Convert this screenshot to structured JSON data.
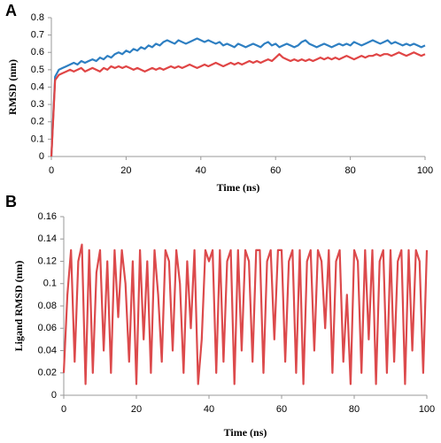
{
  "chart_data": [
    {
      "type": "line",
      "panel_label": "A",
      "x_label": "Time (ns)",
      "y_label": "RMSD (nm)",
      "x": [
        0,
        1,
        2,
        3,
        4,
        5,
        6,
        7,
        8,
        9,
        10,
        11,
        12,
        13,
        14,
        15,
        16,
        17,
        18,
        19,
        20,
        21,
        22,
        23,
        24,
        25,
        26,
        27,
        28,
        29,
        30,
        31,
        32,
        33,
        34,
        35,
        36,
        37,
        38,
        39,
        40,
        41,
        42,
        43,
        44,
        45,
        46,
        47,
        48,
        49,
        50,
        51,
        52,
        53,
        54,
        55,
        56,
        57,
        58,
        59,
        60,
        61,
        62,
        63,
        64,
        65,
        66,
        67,
        68,
        69,
        70,
        71,
        72,
        73,
        74,
        75,
        76,
        77,
        78,
        79,
        80,
        81,
        82,
        83,
        84,
        85,
        86,
        87,
        88,
        89,
        90,
        91,
        92,
        93,
        94,
        95,
        96,
        97,
        98,
        99,
        100
      ],
      "series": [
        {
          "color": "#2e7fc2",
          "values": [
            0,
            0.46,
            0.5,
            0.51,
            0.52,
            0.53,
            0.54,
            0.53,
            0.55,
            0.54,
            0.55,
            0.56,
            0.55,
            0.57,
            0.56,
            0.58,
            0.57,
            0.59,
            0.6,
            0.59,
            0.61,
            0.6,
            0.62,
            0.61,
            0.63,
            0.62,
            0.64,
            0.63,
            0.65,
            0.64,
            0.66,
            0.67,
            0.66,
            0.65,
            0.67,
            0.66,
            0.65,
            0.66,
            0.67,
            0.68,
            0.67,
            0.66,
            0.67,
            0.66,
            0.65,
            0.66,
            0.64,
            0.65,
            0.64,
            0.63,
            0.65,
            0.64,
            0.63,
            0.64,
            0.65,
            0.64,
            0.63,
            0.65,
            0.66,
            0.64,
            0.65,
            0.63,
            0.64,
            0.65,
            0.64,
            0.63,
            0.64,
            0.66,
            0.67,
            0.65,
            0.64,
            0.63,
            0.64,
            0.65,
            0.64,
            0.63,
            0.64,
            0.65,
            0.64,
            0.65,
            0.64,
            0.66,
            0.65,
            0.64,
            0.65,
            0.66,
            0.67,
            0.66,
            0.65,
            0.66,
            0.67,
            0.65,
            0.66,
            0.65,
            0.64,
            0.65,
            0.64,
            0.65,
            0.64,
            0.63,
            0.64
          ]
        },
        {
          "color": "#e04545",
          "values": [
            0,
            0.44,
            0.47,
            0.48,
            0.49,
            0.5,
            0.49,
            0.5,
            0.51,
            0.49,
            0.5,
            0.51,
            0.5,
            0.49,
            0.51,
            0.5,
            0.52,
            0.51,
            0.52,
            0.51,
            0.52,
            0.51,
            0.5,
            0.51,
            0.5,
            0.49,
            0.5,
            0.51,
            0.5,
            0.51,
            0.5,
            0.51,
            0.52,
            0.51,
            0.52,
            0.51,
            0.52,
            0.53,
            0.52,
            0.51,
            0.52,
            0.53,
            0.52,
            0.53,
            0.54,
            0.53,
            0.52,
            0.53,
            0.54,
            0.53,
            0.54,
            0.53,
            0.54,
            0.55,
            0.54,
            0.55,
            0.54,
            0.55,
            0.56,
            0.55,
            0.57,
            0.59,
            0.57,
            0.56,
            0.55,
            0.56,
            0.55,
            0.56,
            0.55,
            0.56,
            0.55,
            0.56,
            0.57,
            0.56,
            0.57,
            0.56,
            0.57,
            0.56,
            0.57,
            0.58,
            0.57,
            0.56,
            0.57,
            0.58,
            0.57,
            0.58,
            0.58,
            0.59,
            0.58,
            0.59,
            0.59,
            0.58,
            0.59,
            0.6,
            0.59,
            0.58,
            0.59,
            0.6,
            0.59,
            0.58,
            0.59
          ]
        }
      ],
      "xlim": [
        0,
        100
      ],
      "xticks": [
        0,
        20,
        40,
        60,
        80,
        100
      ],
      "ylim": [
        0,
        0.8
      ],
      "yticks": [
        0,
        0.1,
        0.2,
        0.3,
        0.4,
        0.5,
        0.6,
        0.7,
        0.8
      ]
    },
    {
      "type": "line",
      "panel_label": "B",
      "x_label": "Time (ns)",
      "y_label": "Ligand RMSD (nm)",
      "x": [
        0,
        1,
        2,
        3,
        4,
        5,
        6,
        7,
        8,
        9,
        10,
        11,
        12,
        13,
        14,
        15,
        16,
        17,
        18,
        19,
        20,
        21,
        22,
        23,
        24,
        25,
        26,
        27,
        28,
        29,
        30,
        31,
        32,
        33,
        34,
        35,
        36,
        37,
        38,
        39,
        40,
        41,
        42,
        43,
        44,
        45,
        46,
        47,
        48,
        49,
        50,
        51,
        52,
        53,
        54,
        55,
        56,
        57,
        58,
        59,
        60,
        61,
        62,
        63,
        64,
        65,
        66,
        67,
        68,
        69,
        70,
        71,
        72,
        73,
        74,
        75,
        76,
        77,
        78,
        79,
        80,
        81,
        82,
        83,
        84,
        85,
        86,
        87,
        88,
        89,
        90,
        91,
        92,
        93,
        94,
        95,
        96,
        97,
        98,
        99,
        100
      ],
      "series": [
        {
          "color": "#dc4a4c",
          "values": [
            0.02,
            0.09,
            0.13,
            0.03,
            0.12,
            0.135,
            0.01,
            0.13,
            0.02,
            0.11,
            0.13,
            0.04,
            0.12,
            0.02,
            0.13,
            0.07,
            0.13,
            0.1,
            0.03,
            0.12,
            0.01,
            0.13,
            0.05,
            0.12,
            0.02,
            0.13,
            0.09,
            0.03,
            0.13,
            0.12,
            0.04,
            0.13,
            0.1,
            0.02,
            0.12,
            0.06,
            0.13,
            0.01,
            0.05,
            0.13,
            0.12,
            0.13,
            0.02,
            0.13,
            0.03,
            0.12,
            0.13,
            0.01,
            0.13,
            0.04,
            0.13,
            0.12,
            0.03,
            0.13,
            0.13,
            0.02,
            0.12,
            0.13,
            0.05,
            0.13,
            0.13,
            0.03,
            0.12,
            0.13,
            0.02,
            0.13,
            0.01,
            0.12,
            0.13,
            0.04,
            0.13,
            0.12,
            0.06,
            0.13,
            0.02,
            0.12,
            0.13,
            0.03,
            0.09,
            0.01,
            0.13,
            0.12,
            0.02,
            0.13,
            0.05,
            0.13,
            0.01,
            0.12,
            0.13,
            0.02,
            0.13,
            0.03,
            0.12,
            0.13,
            0.01,
            0.13,
            0.04,
            0.13,
            0.12,
            0.02,
            0.13
          ]
        }
      ],
      "xlim": [
        0,
        100
      ],
      "xticks": [
        0,
        20,
        40,
        60,
        80,
        100
      ],
      "ylim": [
        0,
        0.16
      ],
      "yticks": [
        0,
        0.02,
        0.04,
        0.06,
        0.08,
        0.1,
        0.12,
        0.14,
        0.16
      ]
    }
  ]
}
